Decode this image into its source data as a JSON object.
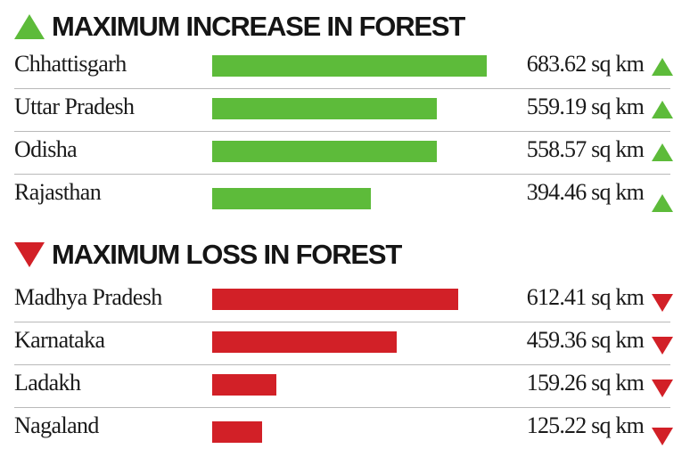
{
  "colors": {
    "increase": "#5dbb3a",
    "loss": "#d22027"
  },
  "icons": {
    "increase": "triangle-up-icon",
    "loss": "triangle-down-icon"
  },
  "chart_data": [
    {
      "type": "bar",
      "orientation": "horizontal",
      "title": "MAXIMUM INCREASE IN FOREST",
      "categories": [
        "Chhattisgarh",
        "Uttar Pradesh",
        "Odisha",
        "Rajasthan"
      ],
      "values": [
        683.62,
        559.19,
        558.57,
        394.46
      ],
      "value_labels": [
        "683.62 sq km",
        "559.19 sq km",
        "558.57 sq km",
        "394.46 sq km"
      ],
      "color": "#5dbb3a",
      "xlim": [
        0,
        683.62
      ]
    },
    {
      "type": "bar",
      "orientation": "horizontal",
      "title": "MAXIMUM LOSS IN FOREST",
      "categories": [
        "Madhya Pradesh",
        "Karnataka",
        "Ladakh",
        "Nagaland"
      ],
      "values": [
        612.41,
        459.36,
        159.26,
        125.22
      ],
      "value_labels": [
        "612.41 sq km",
        "459.36 sq km",
        "159.26 sq km",
        "125.22 sq km"
      ],
      "color": "#d22027",
      "xlim": [
        0,
        683.62
      ]
    }
  ]
}
